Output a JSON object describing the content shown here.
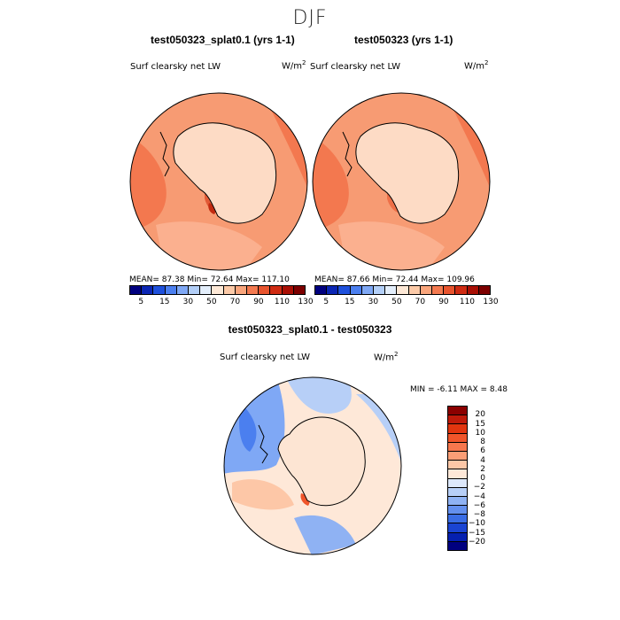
{
  "season_title": "DJF",
  "panels": [
    {
      "subtitle": "test050323_splat0.1 (yrs 1-1)",
      "variable": "Surf clearsky net LW",
      "units_base": "W/m",
      "units_exp": "2",
      "stats": "MEAN=  87.38   Min=  72.64   Max= 117.10"
    },
    {
      "subtitle": "test050323 (yrs 1-1)",
      "variable": "Surf clearsky net LW",
      "units_base": "W/m",
      "units_exp": "2",
      "stats": "MEAN=  87.66   Min=  72.44   Max= 109.96"
    }
  ],
  "abs_colorbar": {
    "ticks": [
      "5",
      "15",
      "30",
      "50",
      "70",
      "90",
      "110",
      "130"
    ],
    "colors": [
      "#00007f",
      "#0b26b4",
      "#1e50dc",
      "#4b7fef",
      "#7fa8f5",
      "#b3cff8",
      "#e3eefb",
      "#fde8d6",
      "#fccaa8",
      "#f9a57c",
      "#f47a50",
      "#e8542e",
      "#cf2b12",
      "#a90f05",
      "#7d0000"
    ]
  },
  "diff_panel": {
    "subtitle": "test050323_splat0.1 - test050323",
    "variable": "Surf clearsky net LW",
    "units_base": "W/m",
    "units_exp": "2",
    "min_max": "MIN =   -6.11  MAX =    8.48"
  },
  "diff_colorbar": {
    "levels": [
      "20",
      "15",
      "10",
      "8",
      "6",
      "4",
      "2",
      "0",
      "-2",
      "-4",
      "-6",
      "-8",
      "-10",
      "-15",
      "-20"
    ],
    "colors": [
      "#8b0000",
      "#bf1a0a",
      "#e1350f",
      "#f0552a",
      "#f7774d",
      "#fb9e76",
      "#fdc7a7",
      "#fee8d8",
      "#dde8fb",
      "#b7cff7",
      "#8fb2f3",
      "#6490ee",
      "#3a6de5",
      "#1a44d2",
      "#0520b0",
      "#000080"
    ]
  }
}
